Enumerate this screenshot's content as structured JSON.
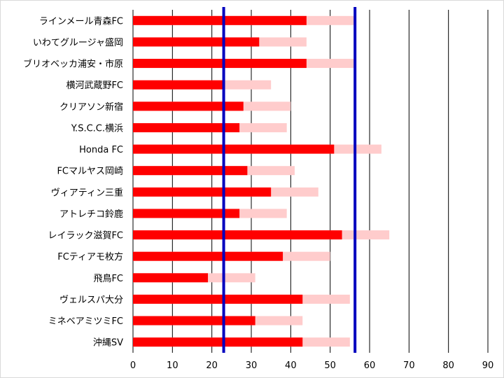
{
  "chart_data": {
    "type": "bar",
    "orientation": "horizontal",
    "categories": [
      "ラインメール青森FC",
      "いわてグルージャ盛岡",
      "ブリオベッカ浦安・市原",
      "横河武蔵野FC",
      "クリアソン新宿",
      "Y.S.C.C.横浜",
      "Honda FC",
      "FCマルヤス岡崎",
      "ヴィアティン三重",
      "アトレチコ鈴鹿",
      "レイラック滋賀FC",
      "FCティアモ枚方",
      "飛鳥FC",
      "ヴェルスパ大分",
      "ミネベアミツミFC",
      "沖縄SV"
    ],
    "series": [
      {
        "values": [
          44,
          32,
          44,
          23,
          28,
          27,
          51,
          29,
          35,
          27,
          53,
          38,
          19,
          43,
          31,
          43
        ]
      },
      {
        "values": [
          56,
          44,
          56,
          35,
          40,
          39,
          63,
          41,
          47,
          39,
          65,
          50,
          31,
          55,
          43,
          55
        ]
      }
    ],
    "reference_lines": [
      23,
      56.3
    ],
    "xlim": [
      0,
      90
    ],
    "x_ticks": [
      "0",
      "10",
      "20",
      "30",
      "40",
      "50",
      "60",
      "70",
      "80",
      "90"
    ],
    "grid": "vertical",
    "legend": "none",
    "colors": {
      "bar": "#ff0000",
      "bar_potential": "#ffcccc",
      "reference_line": "#0000bf",
      "grid": "#000000"
    }
  }
}
